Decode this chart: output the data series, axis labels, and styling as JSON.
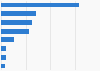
{
  "values": [
    208,
    93,
    82,
    73,
    35,
    13,
    12,
    10
  ],
  "bar_color": "#2e7dd1",
  "background_color": "#f9f9f9",
  "xlim": [
    0,
    260
  ],
  "grid_color": "#e0e0e0",
  "bar_height": 0.55
}
